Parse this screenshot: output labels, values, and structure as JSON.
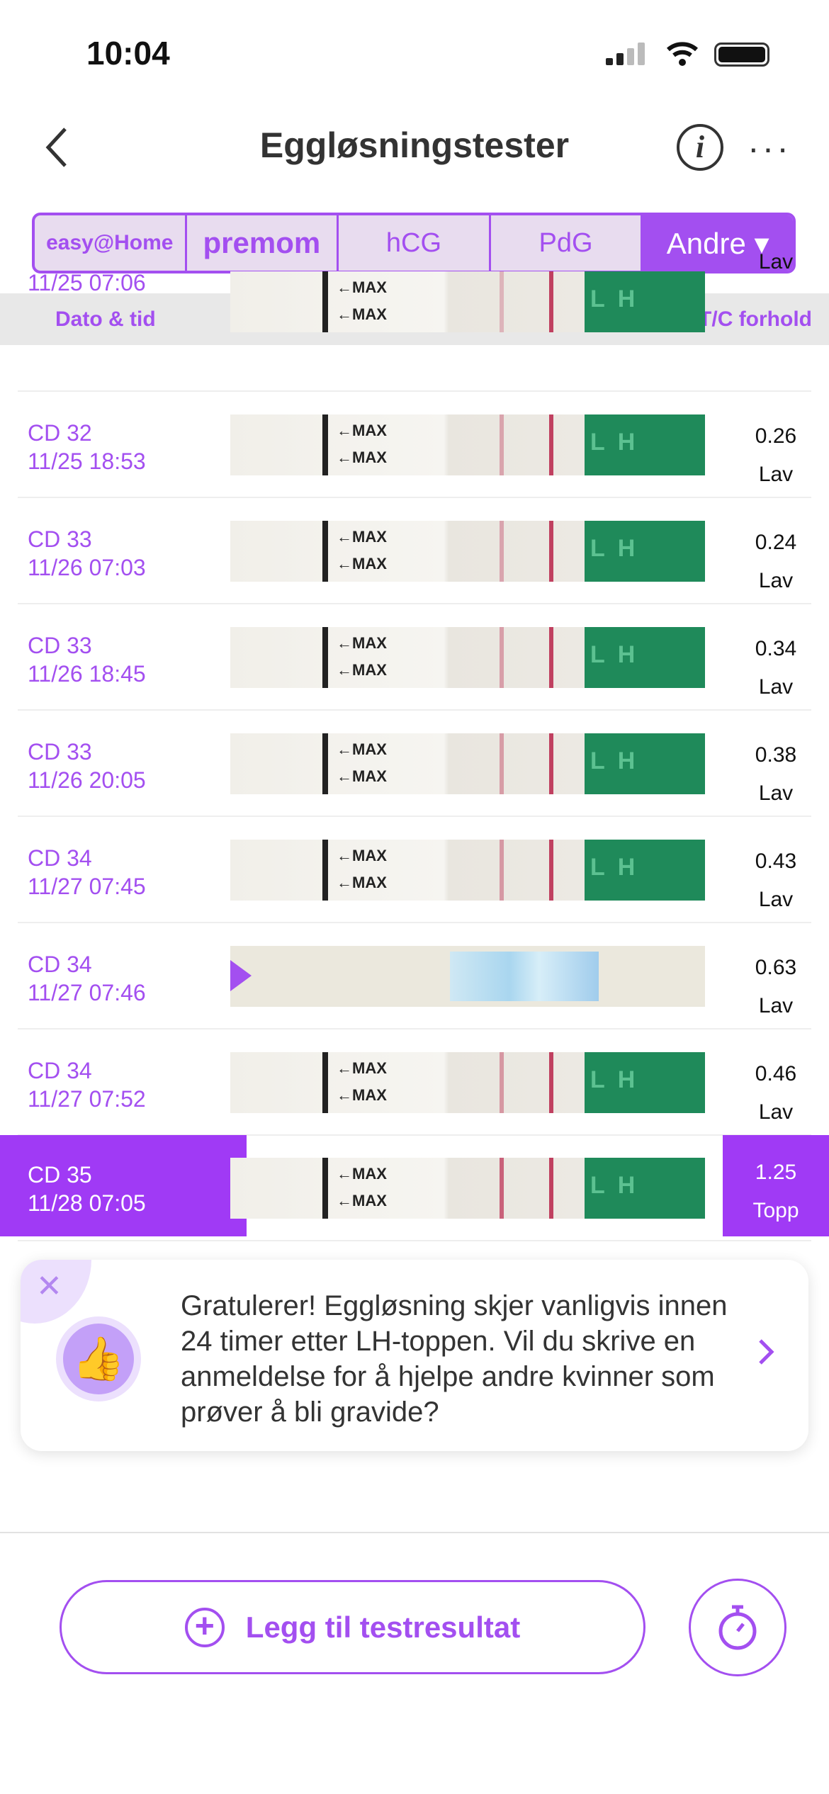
{
  "status": {
    "time": "10:04"
  },
  "nav": {
    "title": "Eggløsningstester"
  },
  "tabs": [
    {
      "label": "easy@Home"
    },
    {
      "label": "premom"
    },
    {
      "label": "hCG"
    },
    {
      "label": "PdG"
    },
    {
      "label": "Andre ▾"
    }
  ],
  "table": {
    "col_date": "Dato & tid",
    "col_ratio": "T/C forhold"
  },
  "strip_label": "←MAX",
  "strip_brand": "LH",
  "rows": [
    {
      "cd": "",
      "date": "11/25 07:06",
      "ratio": "",
      "level": "Lav"
    },
    {
      "cd": "CD 32",
      "date": "11/25 18:53",
      "ratio": "0.26",
      "level": "Lav"
    },
    {
      "cd": "CD 33",
      "date": "11/26 07:03",
      "ratio": "0.24",
      "level": "Lav"
    },
    {
      "cd": "CD 33",
      "date": "11/26 18:45",
      "ratio": "0.34",
      "level": "Lav"
    },
    {
      "cd": "CD 33",
      "date": "11/26 20:05",
      "ratio": "0.38",
      "level": "Lav"
    },
    {
      "cd": "CD 34",
      "date": "11/27 07:45",
      "ratio": "0.43",
      "level": "Lav"
    },
    {
      "cd": "CD 34",
      "date": "11/27 07:46",
      "ratio": "0.63",
      "level": "Lav"
    },
    {
      "cd": "CD 34",
      "date": "11/27 07:52",
      "ratio": "0.46",
      "level": "Lav"
    },
    {
      "cd": "CD 35",
      "date": "11/28 07:05",
      "ratio": "1.25",
      "level": "Topp"
    }
  ],
  "popup": {
    "text": "Gratulerer! Eggløsning skjer vanligvis innen 24 timer etter LH-toppen. Vil du skrive en anmeldelse for å hjelpe andre kvinner som prøver å bli gravide?"
  },
  "footer": {
    "add_label": "Legg til testresultat"
  },
  "colors": {
    "accent": "#a34ff0",
    "highlight": "#a03af5"
  }
}
